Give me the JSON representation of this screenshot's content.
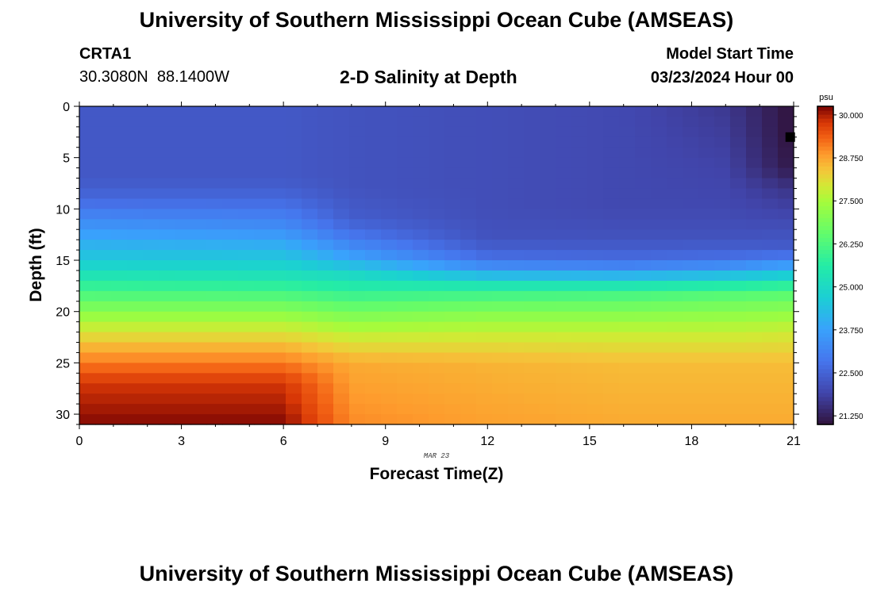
{
  "header": {
    "title": "University of Southern Mississippi Ocean Cube (AMSEAS)",
    "station_id": "CRTA1",
    "station_coords": "30.3080N  88.1400W",
    "subtitle": "2-D Salinity at Depth",
    "model_label": "Model Start Time",
    "model_date": "03/23/2024 Hour 00"
  },
  "footer": {
    "title": "University of Southern Mississippi Ocean Cube (AMSEAS)"
  },
  "chart_data": {
    "type": "heatmap",
    "title": "2-D Salinity at Depth",
    "xlabel": "Forecast Time(Z)",
    "ylabel": "Depth (ft)",
    "x_ticks": [
      "0",
      "3",
      "6",
      "9",
      "12",
      "15",
      "18",
      "21"
    ],
    "y_ticks": [
      "0",
      "5",
      "10",
      "15",
      "20",
      "25",
      "30"
    ],
    "date_annotation": "MAR 23",
    "xlim": [
      0,
      21
    ],
    "ylim": [
      0,
      31
    ],
    "colorbar": {
      "unit": "psu",
      "range": [
        21.0,
        30.25
      ],
      "ticks": [
        "30.000",
        "28.750",
        "27.500",
        "26.250",
        "25.000",
        "23.750",
        "22.500",
        "21.250"
      ]
    },
    "marker": {
      "x": 20.9,
      "y": 3
    },
    "salinity_profiles": [
      {
        "time": 0,
        "depths": [
          0,
          7,
          9,
          12,
          15,
          17,
          19,
          21,
          24,
          27,
          31
        ],
        "values": [
          22.3,
          22.3,
          22.6,
          23.6,
          24.6,
          25.6,
          26.6,
          27.6,
          28.8,
          29.8,
          30.2
        ]
      },
      {
        "time": 6,
        "depths": [
          0,
          7,
          9,
          12,
          15,
          17,
          19,
          21,
          24,
          27,
          31
        ],
        "values": [
          22.3,
          22.3,
          22.6,
          23.4,
          24.6,
          25.5,
          26.6,
          27.6,
          28.8,
          29.8,
          30.2
        ]
      },
      {
        "time": 8,
        "depths": [
          0,
          8,
          11,
          13,
          15,
          16,
          18,
          20,
          22,
          25,
          31
        ],
        "values": [
          22.2,
          22.2,
          22.4,
          23.0,
          23.9,
          24.8,
          25.8,
          26.8,
          27.7,
          28.7,
          29.0
        ]
      },
      {
        "time": 12,
        "depths": [
          0,
          10,
          13,
          15,
          16,
          17,
          18,
          20,
          22,
          25,
          31
        ],
        "values": [
          22.1,
          22.1,
          22.2,
          22.8,
          23.7,
          24.9,
          25.9,
          27.0,
          27.8,
          28.6,
          28.8
        ]
      },
      {
        "time": 16,
        "depths": [
          0,
          10,
          13,
          15,
          16,
          17,
          18,
          20,
          22,
          25,
          31
        ],
        "values": [
          22.0,
          22.0,
          22.2,
          22.7,
          23.5,
          24.8,
          26.0,
          27.0,
          27.8,
          28.5,
          28.7
        ]
      },
      {
        "time": 19,
        "depths": [
          0,
          6,
          10,
          13,
          15,
          16,
          17,
          18,
          20,
          22,
          25,
          31
        ],
        "values": [
          21.7,
          21.9,
          22.0,
          22.2,
          22.8,
          23.8,
          25.0,
          26.2,
          27.1,
          27.8,
          28.5,
          28.7
        ]
      },
      {
        "time": 21,
        "depths": [
          0,
          3,
          6,
          8,
          11,
          14,
          15,
          16,
          17,
          18,
          20,
          22,
          25,
          31
        ],
        "values": [
          21.0,
          21.0,
          21.1,
          21.6,
          22.0,
          22.4,
          23.2,
          24.2,
          25.3,
          26.3,
          27.2,
          27.9,
          28.5,
          28.7
        ]
      }
    ]
  }
}
